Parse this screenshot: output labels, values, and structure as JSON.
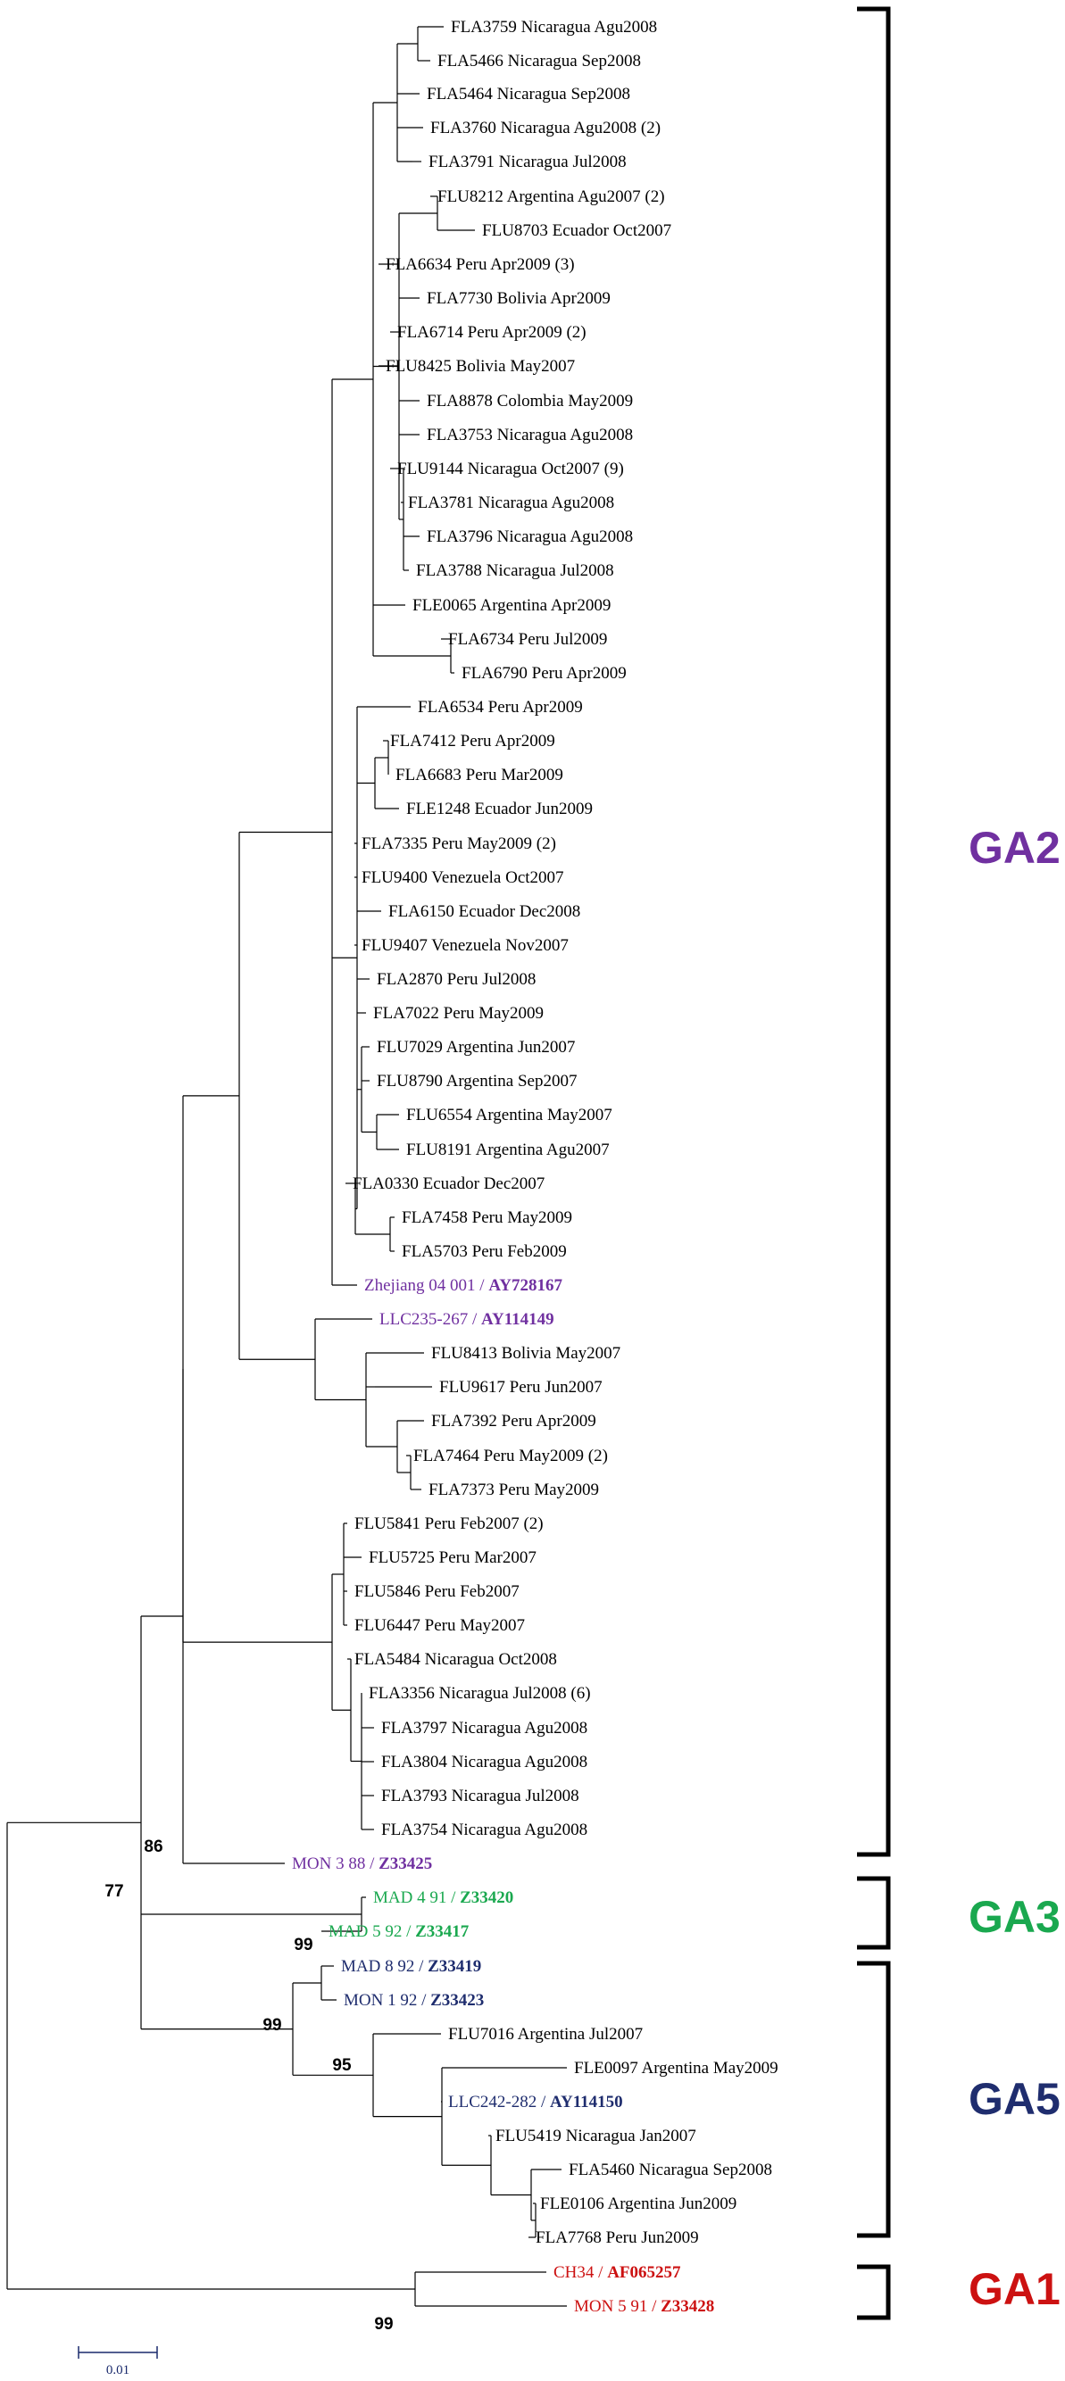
{
  "colors": {
    "leaf": "#000000",
    "GA2": "#7030a0",
    "GA3": "#1aa84f",
    "GA5": "#1f2d6e",
    "GA1": "#cc1111"
  },
  "scale_bar": {
    "label": "0.01"
  },
  "leaves": [
    {
      "id": "L01",
      "label": "FLA3759 Nicaragua Agu2008"
    },
    {
      "id": "L02",
      "label": "FLA5466 Nicaragua Sep2008"
    },
    {
      "id": "L03",
      "label": "FLA5464 Nicaragua Sep2008"
    },
    {
      "id": "L04",
      "label": "FLA3760 Nicaragua Agu2008 (2)"
    },
    {
      "id": "L05",
      "label": "FLA3791 Nicaragua Jul2008"
    },
    {
      "id": "L06",
      "label": "FLU8212 Argentina Agu2007 (2)"
    },
    {
      "id": "L07",
      "label": "FLU8703 Ecuador Oct2007"
    },
    {
      "id": "L08",
      "label": "FLA6634 Peru Apr2009 (3)"
    },
    {
      "id": "L09",
      "label": "FLA7730 Bolivia Apr2009"
    },
    {
      "id": "L10",
      "label": "FLA6714 Peru Apr2009 (2)"
    },
    {
      "id": "L11",
      "label": "FLU8425 Bolivia May2007"
    },
    {
      "id": "L12",
      "label": "FLA8878 Colombia May2009"
    },
    {
      "id": "L13",
      "label": "FLA3753 Nicaragua Agu2008"
    },
    {
      "id": "L14",
      "label": "FLU9144 Nicaragua Oct2007 (9)"
    },
    {
      "id": "L15",
      "label": "FLA3781 Nicaragua Agu2008"
    },
    {
      "id": "L16",
      "label": "FLA3796 Nicaragua Agu2008"
    },
    {
      "id": "L17",
      "label": "FLA3788 Nicaragua Jul2008"
    },
    {
      "id": "L18",
      "label": "FLE0065 Argentina Apr2009"
    },
    {
      "id": "L19",
      "label": "FLA6734 Peru Jul2009"
    },
    {
      "id": "L20",
      "label": "FLA6790 Peru Apr2009"
    },
    {
      "id": "L21",
      "label": "FLA6534 Peru Apr2009"
    },
    {
      "id": "L22",
      "label": "FLA7412 Peru Apr2009"
    },
    {
      "id": "L23",
      "label": "FLA6683 Peru Mar2009"
    },
    {
      "id": "L24",
      "label": "FLE1248 Ecuador Jun2009"
    },
    {
      "id": "L25",
      "label": "FLA7335 Peru May2009 (2)"
    },
    {
      "id": "L26",
      "label": "FLU9400 Venezuela Oct2007"
    },
    {
      "id": "L27",
      "label": "FLA6150 Ecuador Dec2008"
    },
    {
      "id": "L28",
      "label": "FLU9407 Venezuela Nov2007"
    },
    {
      "id": "L29",
      "label": "FLA2870 Peru Jul2008"
    },
    {
      "id": "L30",
      "label": "FLA7022 Peru May2009"
    },
    {
      "id": "L31",
      "label": "FLU7029 Argentina Jun2007"
    },
    {
      "id": "L32",
      "label": "FLU8790 Argentina Sep2007"
    },
    {
      "id": "L33",
      "label": "FLU6554 Argentina May2007"
    },
    {
      "id": "L34",
      "label": "FLU8191 Argentina Agu2007"
    },
    {
      "id": "L35",
      "label": "FLA0330 Ecuador Dec2007"
    },
    {
      "id": "L36",
      "label": "FLA7458 Peru May2009"
    },
    {
      "id": "L37",
      "label": "FLA5703 Peru Feb2009"
    },
    {
      "id": "L38",
      "label": "Zhejiang 04 001 / ",
      "accession": "AY728167",
      "group": "GA2"
    },
    {
      "id": "L39",
      "label": "LLC235-267 / ",
      "accession": "AY114149",
      "group": "GA2"
    },
    {
      "id": "L40",
      "label": "FLU8413 Bolivia May2007"
    },
    {
      "id": "L41",
      "label": "FLU9617 Peru Jun2007"
    },
    {
      "id": "L42",
      "label": "FLA7392 Peru Apr2009"
    },
    {
      "id": "L43",
      "label": "FLA7464 Peru May2009 (2)"
    },
    {
      "id": "L44",
      "label": "FLA7373 Peru May2009"
    },
    {
      "id": "L45",
      "label": "FLU5841 Peru Feb2007 (2)"
    },
    {
      "id": "L46",
      "label": "FLU5725 Peru Mar2007"
    },
    {
      "id": "L47",
      "label": "FLU5846 Peru Feb2007"
    },
    {
      "id": "L48",
      "label": "FLU6447 Peru May2007"
    },
    {
      "id": "L49",
      "label": "FLA5484 Nicaragua Oct2008"
    },
    {
      "id": "L50",
      "label": "FLA3356 Nicaragua Jul2008 (6)"
    },
    {
      "id": "L51",
      "label": "FLA3797 Nicaragua Agu2008"
    },
    {
      "id": "L52",
      "label": "FLA3804 Nicaragua Agu2008"
    },
    {
      "id": "L53",
      "label": "FLA3793 Nicaragua Jul2008"
    },
    {
      "id": "L54",
      "label": "FLA3754 Nicaragua Agu2008"
    },
    {
      "id": "L55",
      "label": "MON 3 88 / ",
      "accession": "Z33425",
      "group": "GA2"
    },
    {
      "id": "L56",
      "label": "MAD 4 91 / ",
      "accession": "Z33420",
      "group": "GA3"
    },
    {
      "id": "L57",
      "label": "MAD 5 92 / ",
      "accession": "Z33417",
      "group": "GA3"
    },
    {
      "id": "L58",
      "label": "MAD 8 92 / ",
      "accession": "Z33419",
      "group": "GA5"
    },
    {
      "id": "L59",
      "label": "MON 1 92 / ",
      "accession": "Z33423",
      "group": "GA5"
    },
    {
      "id": "L60",
      "label": "FLU7016 Argentina Jul2007"
    },
    {
      "id": "L61",
      "label": "FLE0097 Argentina May2009"
    },
    {
      "id": "L62",
      "label": "LLC242-282 / ",
      "accession": "AY114150",
      "group": "GA5"
    },
    {
      "id": "L63",
      "label": "FLU5419 Nicaragua Jan2007"
    },
    {
      "id": "L64",
      "label": "FLA5460 Nicaragua Sep2008"
    },
    {
      "id": "L65",
      "label": "FLE0106 Argentina Jun2009"
    },
    {
      "id": "L66",
      "label": "FLA7768 Peru Jun2009"
    },
    {
      "id": "L67",
      "label": "CH34 / ",
      "accession": "AF065257",
      "group": "GA1"
    },
    {
      "id": "L68",
      "label": "MON 5 91 / ",
      "accession": "Z33428",
      "group": "GA1"
    }
  ],
  "bootstrap": [
    {
      "id": "B1",
      "value": "86"
    },
    {
      "id": "B2",
      "value": "77"
    },
    {
      "id": "B3",
      "value": "99"
    },
    {
      "id": "B4",
      "value": "99"
    },
    {
      "id": "B5",
      "value": "95"
    },
    {
      "id": "B6",
      "value": "99"
    }
  ],
  "groups": [
    {
      "id": "GA2",
      "label": "GA2"
    },
    {
      "id": "GA3",
      "label": "GA3"
    },
    {
      "id": "GA5",
      "label": "GA5"
    },
    {
      "id": "GA1",
      "label": "GA1"
    }
  ]
}
